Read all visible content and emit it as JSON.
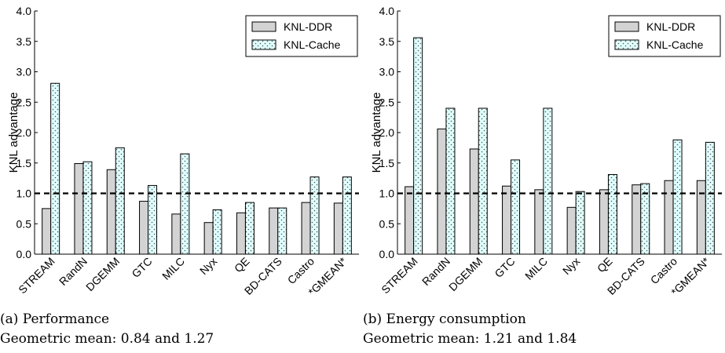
{
  "chart_data": [
    {
      "type": "bar",
      "ylabel": "KNL advantage",
      "ylim": [
        0,
        4.0
      ],
      "yticks": [
        "0.0",
        "0.5",
        "1.0",
        "1.5",
        "2.0",
        "2.5",
        "3.0",
        "3.5",
        "4.0"
      ],
      "reference_line": 1.0,
      "categories": [
        "STREAM",
        "RandN",
        "DGEMM",
        "GTC",
        "MILC",
        "Nyx",
        "QE",
        "BD-CATS",
        "Castro",
        "*GMEAN*"
      ],
      "series": [
        {
          "name": "KNL-DDR",
          "values": [
            0.75,
            1.49,
            1.39,
            0.87,
            0.66,
            0.52,
            0.68,
            0.76,
            0.85,
            0.84
          ]
        },
        {
          "name": "KNL-Cache",
          "values": [
            2.81,
            1.52,
            1.75,
            1.13,
            1.65,
            0.73,
            0.85,
            0.76,
            1.27,
            1.27
          ]
        }
      ],
      "legend_position": "top-right",
      "caption": "(a) Performance",
      "subcaption": "Geometric mean: 0.84 and 1.27"
    },
    {
      "type": "bar",
      "ylabel": "KNL advantage",
      "ylim": [
        0,
        4.0
      ],
      "yticks": [
        "0.0",
        "0.5",
        "1.0",
        "1.5",
        "2.0",
        "2.5",
        "3.0",
        "3.5",
        "4.0"
      ],
      "reference_line": 1.0,
      "categories": [
        "STREAM",
        "RandN",
        "DGEMM",
        "GTC",
        "MILC",
        "Nyx",
        "QE",
        "BD-CATS",
        "Castro",
        "*GMEAN*"
      ],
      "series": [
        {
          "name": "KNL-DDR",
          "values": [
            1.11,
            2.06,
            1.73,
            1.12,
            1.06,
            0.77,
            1.06,
            1.14,
            1.21,
            1.21
          ]
        },
        {
          "name": "KNL-Cache",
          "values": [
            3.56,
            2.4,
            2.4,
            1.55,
            2.4,
            1.03,
            1.31,
            1.16,
            1.88,
            1.84
          ]
        }
      ],
      "legend_position": "top-right",
      "caption": "(b) Energy consumption",
      "subcaption": "Geometric mean: 1.21 and 1.84"
    }
  ],
  "colors": {
    "ddr_fill": "#d3d3d3",
    "cache_fill": "#e0ffff",
    "cache_dots": "#555555",
    "bar_edge": "#000000"
  }
}
